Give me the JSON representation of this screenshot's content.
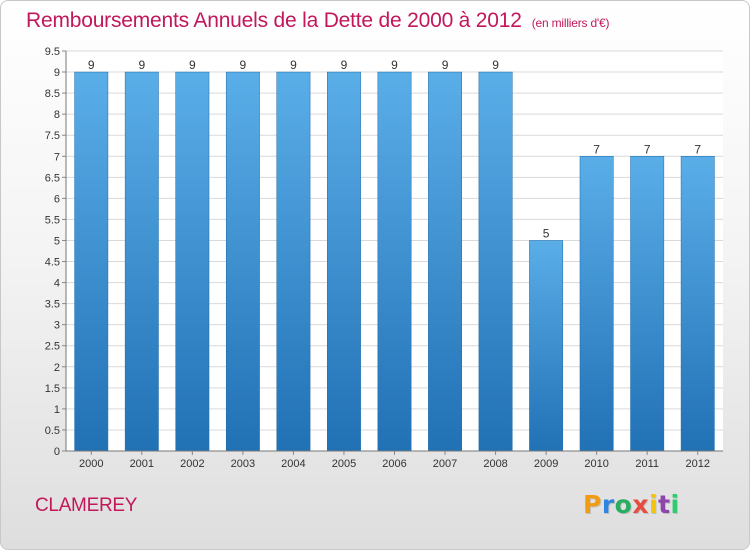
{
  "title": "Remboursements Annuels de la Dette de 2000 à 2012",
  "subtitle": "(en milliers d'€)",
  "commune": "CLAMEREY",
  "logo": {
    "letters": [
      "P",
      "r",
      "o",
      "x",
      "i",
      "t",
      "i"
    ],
    "colors": [
      "#f39c12",
      "#2e86de",
      "#27ae60",
      "#e74c3c",
      "#f1c40f",
      "#8e44ad",
      "#2ecc71"
    ]
  },
  "colors": {
    "title": "#c2185b",
    "bar_top": "#5aaee8",
    "bar_bottom": "#2171b5"
  },
  "chart_data": {
    "type": "bar",
    "categories": [
      "2000",
      "2001",
      "2002",
      "2003",
      "2004",
      "2005",
      "2006",
      "2007",
      "2008",
      "2009",
      "2010",
      "2011",
      "2012"
    ],
    "values": [
      9,
      9,
      9,
      9,
      9,
      9,
      9,
      9,
      9,
      5,
      7,
      7,
      7
    ],
    "data_labels": [
      "9",
      "9",
      "9",
      "9",
      "9",
      "9",
      "9",
      "9",
      "9",
      "5",
      "7",
      "7",
      "7"
    ],
    "y_ticks": [
      "0",
      "0.5",
      "1",
      "1.5",
      "2",
      "2.5",
      "3",
      "3.5",
      "4",
      "4.5",
      "5",
      "5.5",
      "6",
      "6.5",
      "7",
      "7.5",
      "8",
      "8.5",
      "9",
      "9.5"
    ],
    "ylim": [
      0,
      9.5
    ],
    "grid": true
  }
}
